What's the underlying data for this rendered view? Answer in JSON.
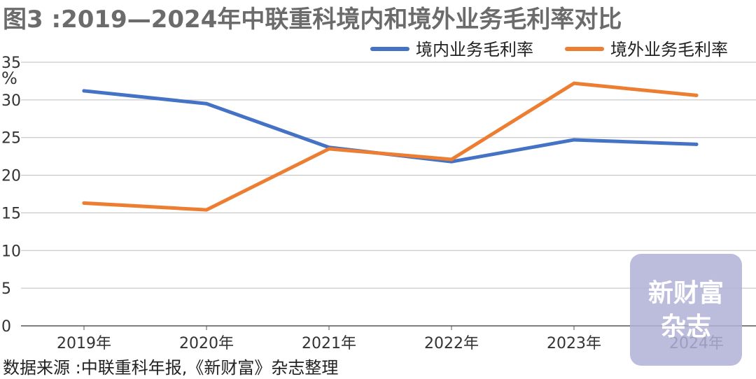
{
  "title": "图3 :2019—2024年中联重科境内和境外业务毛利率对比",
  "source": "数据来源 :中联重科年报,《新财富》杂志整理",
  "watermark": {
    "line1": "新财富",
    "line2": "杂志"
  },
  "chart_data": {
    "type": "line",
    "categories": [
      "2019年",
      "2020年",
      "2021年",
      "2022年",
      "2023年",
      "2024年"
    ],
    "ylabel": "%",
    "ylim": [
      0,
      35
    ],
    "yticks": [
      0,
      5,
      10,
      15,
      20,
      25,
      30,
      35
    ],
    "grid": true,
    "legend_position": "top-right",
    "series": [
      {
        "name": "境内业务毛利率",
        "color": "#4472c4",
        "values": [
          31.2,
          29.5,
          23.7,
          21.8,
          24.7,
          24.1
        ]
      },
      {
        "name": "境外业务毛利率",
        "color": "#ed7d31",
        "values": [
          16.3,
          15.4,
          23.5,
          22.1,
          32.2,
          30.6
        ]
      }
    ]
  }
}
